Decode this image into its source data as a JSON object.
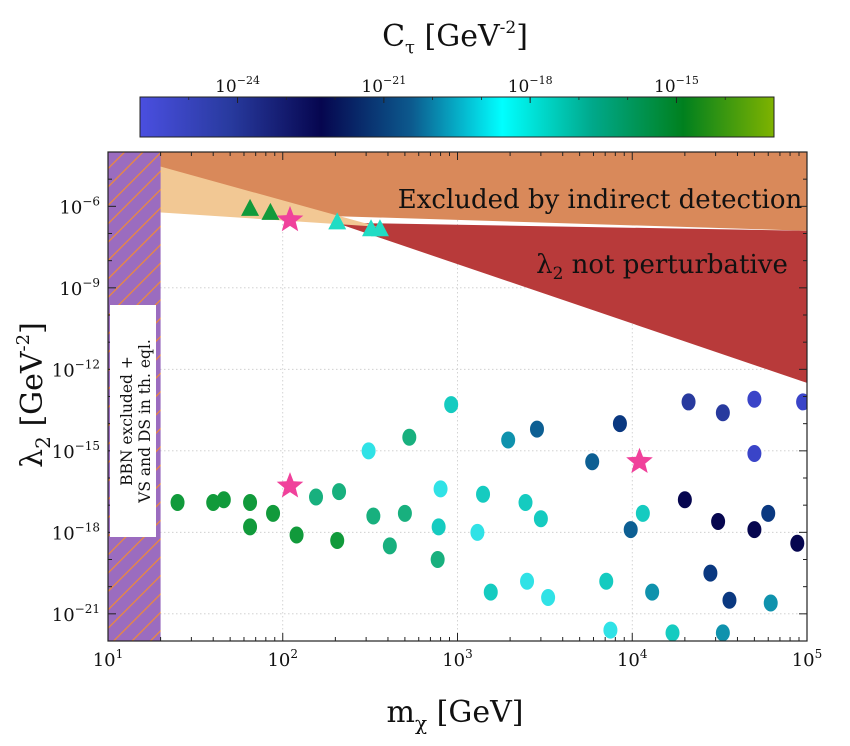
{
  "chart_data": {
    "type": "scatter",
    "xlabel": "m",
    "xlabel_sub": "χ",
    "xlabel_unit": "[GeV]",
    "ylabel": "λ",
    "ylabel_sub": "2",
    "ylabel_unit": "[GeV",
    "ylabel_exp": "-2",
    "ylabel_close": "]",
    "x_scale": "log",
    "y_scale": "log",
    "xlim": [
      10,
      100000
    ],
    "ylim": [
      1e-22,
      0.0001
    ],
    "grid": true,
    "x_ticks": [
      {
        "base": "10",
        "exp": "1"
      },
      {
        "base": "10",
        "exp": "2"
      },
      {
        "base": "10",
        "exp": "3"
      },
      {
        "base": "10",
        "exp": "4"
      },
      {
        "base": "10",
        "exp": "5"
      }
    ],
    "y_ticks": [
      {
        "base": "10",
        "exp": "-6"
      },
      {
        "base": "10",
        "exp": "-9"
      },
      {
        "base": "10",
        "exp": "-12"
      },
      {
        "base": "10",
        "exp": "-15"
      },
      {
        "base": "10",
        "exp": "-18"
      },
      {
        "base": "10",
        "exp": "-21"
      }
    ],
    "colorbar": {
      "label": "C",
      "label_sub": "τ",
      "label_unit": "[GeV",
      "label_exp": "-2",
      "label_close": "]",
      "scale": "log",
      "range_log10": [
        -26,
        -13
      ],
      "ticks": [
        {
          "base": "10",
          "exp": "-24"
        },
        {
          "base": "10",
          "exp": "-21"
        },
        {
          "base": "10",
          "exp": "-18"
        },
        {
          "base": "10",
          "exp": "-15"
        }
      ],
      "colors": [
        "#4a4fe0",
        "#283a9e",
        "#06064f",
        "#0c5a8e",
        "#00ffff",
        "#00a88a",
        "#00801e",
        "#7fb300"
      ]
    },
    "regions": [
      {
        "name": "indirect",
        "label": "Excluded by indirect detection",
        "color": "#d9895a"
      },
      {
        "name": "perturbative",
        "label_main": "λ",
        "label_sub": "2",
        "label_rest": " not perturbative",
        "color": "#b83a3a"
      },
      {
        "name": "bbn",
        "label_line1": "BBN excluded +",
        "label_line2": "VS and DS in th. eql.",
        "color": "#9b6cbf",
        "hatch_color": "#f08a36",
        "x_max": 20
      }
    ],
    "series": [
      {
        "marker": "circle",
        "points": [
          {
            "x": 25,
            "y": -16.9,
            "c": "#119a3b"
          },
          {
            "x": 40,
            "y": -16.9,
            "c": "#119a3b"
          },
          {
            "x": 46,
            "y": -16.8,
            "c": "#119a3b"
          },
          {
            "x": 65,
            "y": -16.9,
            "c": "#119a3b"
          },
          {
            "x": 65,
            "y": -17.8,
            "c": "#119a3b"
          },
          {
            "x": 88,
            "y": -17.3,
            "c": "#119a3b"
          },
          {
            "x": 120,
            "y": -18.1,
            "c": "#119a3b"
          },
          {
            "x": 155,
            "y": -16.7,
            "c": "#18b07e"
          },
          {
            "x": 205,
            "y": -18.3,
            "c": "#119a3b"
          },
          {
            "x": 210,
            "y": -16.5,
            "c": "#18b07e"
          },
          {
            "x": 310,
            "y": -15.0,
            "c": "#30e2e6"
          },
          {
            "x": 330,
            "y": -17.4,
            "c": "#18b07e"
          },
          {
            "x": 410,
            "y": -18.5,
            "c": "#18b07e"
          },
          {
            "x": 500,
            "y": -17.3,
            "c": "#18b07e"
          },
          {
            "x": 530,
            "y": -14.5,
            "c": "#18b07e"
          },
          {
            "x": 770,
            "y": -19.0,
            "c": "#18b07e"
          },
          {
            "x": 780,
            "y": -17.8,
            "c": "#15cbc0"
          },
          {
            "x": 800,
            "y": -16.4,
            "c": "#30e2e6"
          },
          {
            "x": 920,
            "y": -13.3,
            "c": "#15cbc0"
          },
          {
            "x": 1300,
            "y": -18.0,
            "c": "#30e2e6"
          },
          {
            "x": 1400,
            "y": -16.6,
            "c": "#15cbc0"
          },
          {
            "x": 1550,
            "y": -20.2,
            "c": "#15cbc0"
          },
          {
            "x": 1950,
            "y": -14.6,
            "c": "#0f92ad"
          },
          {
            "x": 2450,
            "y": -16.9,
            "c": "#15cbc0"
          },
          {
            "x": 2500,
            "y": -19.8,
            "c": "#30e2e6"
          },
          {
            "x": 2850,
            "y": -14.2,
            "c": "#0d5f93"
          },
          {
            "x": 3000,
            "y": -17.5,
            "c": "#15cbc0"
          },
          {
            "x": 3300,
            "y": -20.4,
            "c": "#30e2e6"
          },
          {
            "x": 5900,
            "y": -15.4,
            "c": "#0d5f93"
          },
          {
            "x": 7100,
            "y": -19.8,
            "c": "#15cbc0"
          },
          {
            "x": 7500,
            "y": -21.6,
            "c": "#30e2e6"
          },
          {
            "x": 8500,
            "y": -14.0,
            "c": "#0a3880"
          },
          {
            "x": 9800,
            "y": -17.9,
            "c": "#0d5f93"
          },
          {
            "x": 11500,
            "y": -17.3,
            "c": "#15cbc0"
          },
          {
            "x": 13000,
            "y": -20.2,
            "c": "#0f92ad"
          },
          {
            "x": 17000,
            "y": -21.7,
            "c": "#15cbc0"
          },
          {
            "x": 20000,
            "y": -16.8,
            "c": "#06064f"
          },
          {
            "x": 21000,
            "y": -13.2,
            "c": "#283a9e"
          },
          {
            "x": 28000,
            "y": -19.5,
            "c": "#0a3880"
          },
          {
            "x": 31000,
            "y": -17.6,
            "c": "#06064f"
          },
          {
            "x": 33000,
            "y": -13.6,
            "c": "#283a9e"
          },
          {
            "x": 33000,
            "y": -21.7,
            "c": "#0f92ad"
          },
          {
            "x": 36000,
            "y": -20.5,
            "c": "#0a3880"
          },
          {
            "x": 50000,
            "y": -13.1,
            "c": "#3a44c8"
          },
          {
            "x": 50000,
            "y": -15.1,
            "c": "#3a44c8"
          },
          {
            "x": 50000,
            "y": -17.9,
            "c": "#06064f"
          },
          {
            "x": 60000,
            "y": -17.3,
            "c": "#0a3880"
          },
          {
            "x": 62000,
            "y": -20.6,
            "c": "#0f92ad"
          },
          {
            "x": 75000,
            "y": -22.3,
            "c": "#0f92ad"
          },
          {
            "x": 88000,
            "y": -18.4,
            "c": "#06064f"
          },
          {
            "x": 95000,
            "y": -13.2,
            "c": "#3a44c8"
          }
        ]
      },
      {
        "marker": "triangle",
        "points": [
          {
            "x": 65,
            "y": -6.1,
            "c": "#119a3b"
          },
          {
            "x": 85,
            "y": -6.25,
            "c": "#119a3b"
          },
          {
            "x": 205,
            "y": -6.6,
            "c": "#21dcc4"
          },
          {
            "x": 320,
            "y": -6.85,
            "c": "#21dcc4"
          },
          {
            "x": 360,
            "y": -6.85,
            "c": "#21dcc4"
          }
        ]
      },
      {
        "marker": "star",
        "points": [
          {
            "x": 110,
            "y": -6.5,
            "c": "#f0419b"
          },
          {
            "x": 110,
            "y": -16.3,
            "c": "#f0419b"
          },
          {
            "x": 11000,
            "y": -15.4,
            "c": "#f0419b"
          }
        ]
      }
    ]
  }
}
